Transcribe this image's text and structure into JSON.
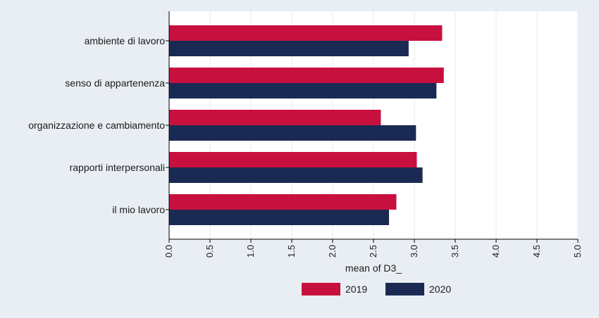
{
  "chart_data": {
    "type": "bar",
    "orientation": "horizontal",
    "categories": [
      "ambiente di lavoro",
      "senso di appartenenza",
      "organizzazione e cambiamento",
      "rapporti interpersonali",
      "il mio lavoro"
    ],
    "series": [
      {
        "name": "2019",
        "color": "#c8103e",
        "values": [
          3.34,
          3.36,
          2.59,
          3.03,
          2.78
        ]
      },
      {
        "name": "2020",
        "color": "#1b2a52",
        "values": [
          2.93,
          3.27,
          3.02,
          3.1,
          2.69
        ]
      }
    ],
    "xlabel": "mean of D3_",
    "xlim": [
      0,
      5
    ],
    "xticks": [
      0,
      0.5,
      1,
      1.5,
      2,
      2.5,
      3,
      3.5,
      4,
      4.5,
      5
    ],
    "xtick_labels": [
      "0.0",
      "0.5",
      "1.0",
      "1.5",
      "2.0",
      "2.5",
      "3.0",
      "3.5",
      "4.0",
      "4.5",
      "5.0"
    ],
    "grid": true,
    "legend_position": "bottom",
    "colors": {
      "background": "#e8eef3",
      "plot_background": "#ffffff",
      "grid": "#e8eef3",
      "axis": "#000000"
    }
  }
}
